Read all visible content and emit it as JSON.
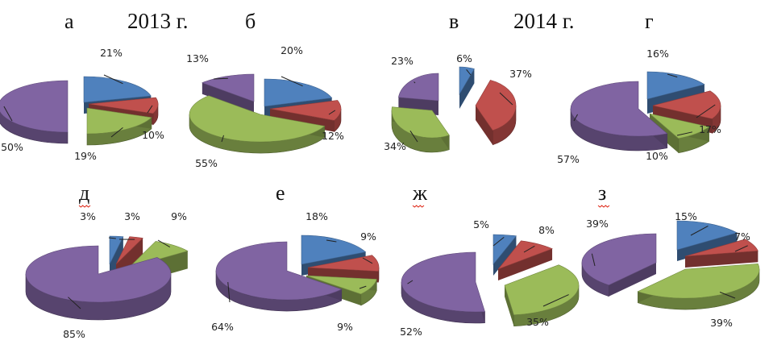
{
  "headers": {
    "year_2013": "2013 г.",
    "year_2014": "2014 г."
  },
  "colors": {
    "blue": "#4f81bd",
    "red": "#c0504d",
    "green": "#9bbb59",
    "purple": "#8064a2"
  },
  "chart_data": [
    {
      "type": "pie",
      "letter": "а",
      "slices": [
        {
          "color": "blue",
          "value": 21,
          "label": "21%"
        },
        {
          "color": "red",
          "value": 10,
          "label": "10%"
        },
        {
          "color": "green",
          "value": 19,
          "label": "19%"
        },
        {
          "color": "purple",
          "value": 50,
          "label": "50%"
        }
      ]
    },
    {
      "type": "pie",
      "letter": "б",
      "slices": [
        {
          "color": "blue",
          "value": 20,
          "label": "20%"
        },
        {
          "color": "red",
          "value": 12,
          "label": "12%"
        },
        {
          "color": "green",
          "value": 55,
          "label": "55%"
        },
        {
          "color": "purple",
          "value": 13,
          "label": "13%"
        }
      ]
    },
    {
      "type": "pie",
      "letter": "в",
      "slices": [
        {
          "color": "blue",
          "value": 6,
          "label": "6%"
        },
        {
          "color": "red",
          "value": 37,
          "label": "37%"
        },
        {
          "color": "green",
          "value": 34,
          "label": "34%"
        },
        {
          "color": "purple",
          "value": 23,
          "label": "23%"
        }
      ]
    },
    {
      "type": "pie",
      "letter": "г",
      "slices": [
        {
          "color": "blue",
          "value": 16,
          "label": "16%"
        },
        {
          "color": "red",
          "value": 17,
          "label": "17%"
        },
        {
          "color": "green",
          "value": 10,
          "label": "10%"
        },
        {
          "color": "purple",
          "value": 57,
          "label": "57%"
        }
      ]
    },
    {
      "type": "pie",
      "letter": "д",
      "slices": [
        {
          "color": "blue",
          "value": 3,
          "label": "3%"
        },
        {
          "color": "red",
          "value": 3,
          "label": "3%"
        },
        {
          "color": "green",
          "value": 9,
          "label": "9%"
        },
        {
          "color": "purple",
          "value": 85,
          "label": "85%"
        }
      ]
    },
    {
      "type": "pie",
      "letter": "е",
      "slices": [
        {
          "color": "blue",
          "value": 18,
          "label": "18%"
        },
        {
          "color": "red",
          "value": 9,
          "label": "9%"
        },
        {
          "color": "green",
          "value": 9,
          "label": "9%"
        },
        {
          "color": "purple",
          "value": 64,
          "label": "64%"
        }
      ]
    },
    {
      "type": "pie",
      "letter": "ж",
      "slices": [
        {
          "color": "blue",
          "value": 5,
          "label": "5%"
        },
        {
          "color": "red",
          "value": 8,
          "label": "8%"
        },
        {
          "color": "green",
          "value": 35,
          "label": "35%"
        },
        {
          "color": "purple",
          "value": 52,
          "label": "52%"
        }
      ]
    },
    {
      "type": "pie",
      "letter": "з",
      "slices": [
        {
          "color": "blue",
          "value": 15,
          "label": "15%"
        },
        {
          "color": "red",
          "value": 7,
          "label": "7%"
        },
        {
          "color": "green",
          "value": 39,
          "label": "39%"
        },
        {
          "color": "purple",
          "value": 39,
          "label": "39%"
        }
      ]
    }
  ]
}
